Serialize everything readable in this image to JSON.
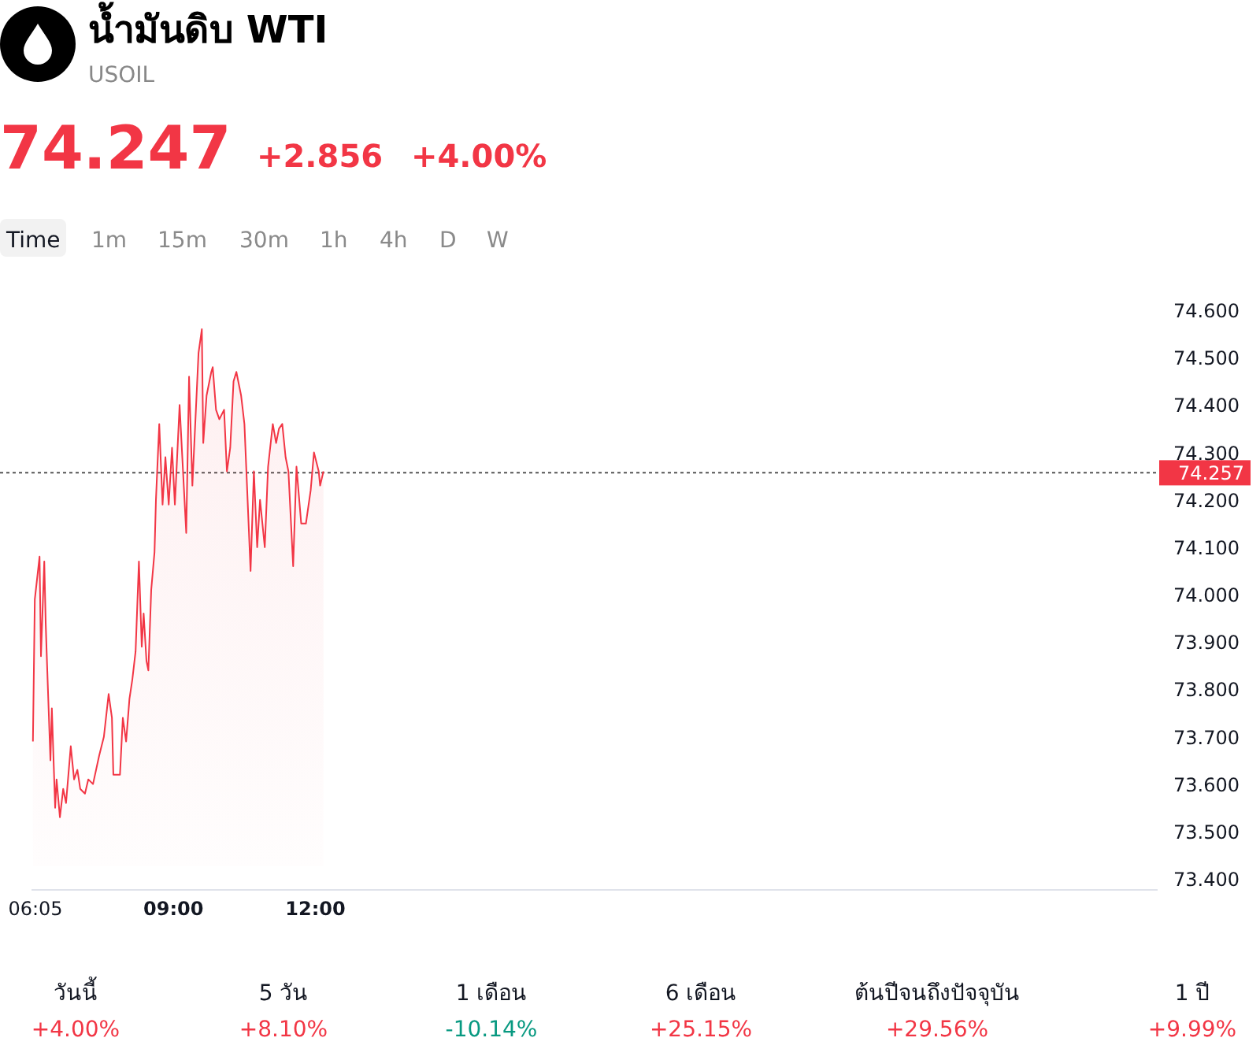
{
  "chart_data": [
    {
      "type": "area",
      "title": "น้ำมันดิบ WTI",
      "subtitle": "USOIL",
      "annotations": [
        "74.247",
        "+2.856",
        "+4.00%",
        "Time",
        "1m",
        "15m",
        "30m",
        "1h",
        "4h",
        "D",
        "W"
      ],
      "x": [
        6.03,
        6.07,
        6.17,
        6.2,
        6.27,
        6.3,
        6.33,
        6.4,
        6.43,
        6.5,
        6.53,
        6.6,
        6.67,
        6.73,
        6.83,
        6.9,
        6.97,
        7.03,
        7.13,
        7.2,
        7.3,
        7.43,
        7.53,
        7.63,
        7.7,
        7.73,
        7.87,
        7.93,
        8.0,
        8.07,
        8.13,
        8.2,
        8.27,
        8.33,
        8.37,
        8.43,
        8.47,
        8.53,
        8.6,
        8.63,
        8.7,
        8.77,
        8.83,
        8.9,
        8.97,
        9.03,
        9.13,
        9.27,
        9.33,
        9.4,
        9.53,
        9.6,
        9.63,
        9.7,
        9.8,
        9.83,
        9.9,
        9.97,
        10.07,
        10.13,
        10.2,
        10.27,
        10.33,
        10.43,
        10.5,
        10.63,
        10.7,
        10.77,
        10.83,
        10.93,
        11.0,
        11.1,
        11.17,
        11.23,
        11.3,
        11.37,
        11.43,
        11.53,
        11.6,
        11.7,
        11.8,
        11.9,
        11.97,
        12.07,
        12.1,
        12.17
      ],
      "series": [
        {
          "color": "#f23645",
          "values": [
            73.69,
            73.99,
            74.08,
            73.87,
            74.07,
            73.94,
            73.85,
            73.65,
            73.76,
            73.55,
            73.61,
            73.53,
            73.59,
            73.56,
            73.68,
            73.61,
            73.63,
            73.59,
            73.58,
            73.61,
            73.6,
            73.66,
            73.7,
            73.79,
            73.74,
            73.62,
            73.62,
            73.74,
            73.69,
            73.78,
            73.82,
            73.88,
            74.07,
            73.89,
            73.96,
            73.86,
            73.84,
            74.01,
            74.09,
            74.2,
            74.36,
            74.19,
            74.29,
            74.19,
            74.31,
            74.19,
            74.4,
            74.13,
            74.46,
            74.23,
            74.51,
            74.56,
            74.32,
            74.42,
            74.47,
            74.48,
            74.39,
            74.37,
            74.39,
            74.26,
            74.31,
            74.45,
            74.47,
            74.42,
            74.36,
            74.05,
            74.26,
            74.1,
            74.2,
            74.1,
            74.27,
            74.36,
            74.32,
            74.35,
            74.36,
            74.29,
            74.26,
            74.06,
            74.27,
            74.15,
            74.15,
            74.22,
            74.3,
            74.26,
            74.23,
            74.26
          ]
        }
      ],
      "xlim": [
        6.0,
        29.8
      ],
      "xticks": [
        {
          "value": 6.0833,
          "label": "06:05"
        },
        {
          "value": 9,
          "label": "09:00"
        },
        {
          "value": 12,
          "label": "12:00"
        }
      ],
      "ylim": [
        73.4,
        74.6
      ],
      "yticks": [
        {
          "value": 73.4,
          "label": "73.400"
        },
        {
          "value": 73.5,
          "label": "73.500"
        },
        {
          "value": 73.6,
          "label": "73.600"
        },
        {
          "value": 73.7,
          "label": "73.700"
        },
        {
          "value": 73.8,
          "label": "73.800"
        },
        {
          "value": 73.9,
          "label": "73.900"
        },
        {
          "value": 74.0,
          "label": "74.000"
        },
        {
          "value": 74.1,
          "label": "74.100"
        },
        {
          "value": 74.2,
          "label": "74.200"
        },
        {
          "value": 74.3,
          "label": "74.300"
        },
        {
          "value": 74.4,
          "label": "74.400"
        },
        {
          "value": 74.5,
          "label": "74.500"
        },
        {
          "value": 74.6,
          "label": "74.600"
        }
      ],
      "ref_lines": [
        {
          "axis": "y",
          "value": 74.257,
          "label": "74.257",
          "line_style": "dotted"
        }
      ]
    },
    {
      "type": "other",
      "categories": [
        "วันนี้",
        "5 วัน",
        "1 เดือน",
        "6 เดือน",
        "ต้นปีจนถึงปัจจุบัน",
        "1 ปี"
      ],
      "values": [
        4.0,
        8.1,
        -10.14,
        25.15,
        29.56,
        9.99
      ],
      "value_labels": [
        "+4.00%",
        "+8.10%",
        "-10.14%",
        "+25.15%",
        "+29.56%",
        "+9.99%"
      ]
    }
  ]
}
